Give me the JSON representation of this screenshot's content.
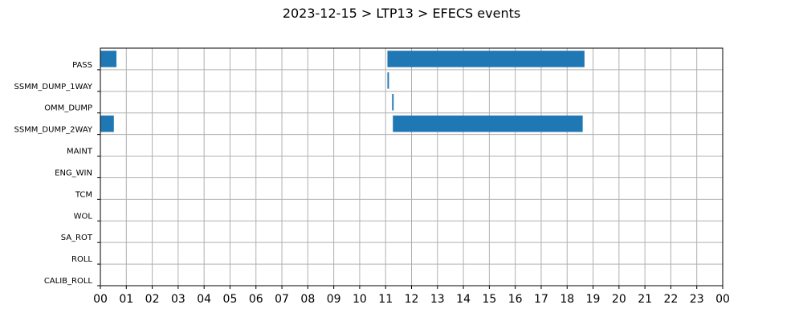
{
  "chart_data": {
    "type": "bar",
    "orientation": "horizontal-timeline",
    "title": "2023-12-15 > LTP13 > EFECS events",
    "xlabel": "",
    "ylabel": "",
    "grid": true,
    "bar_color": "#1f77b4",
    "xlim": [
      0,
      24
    ],
    "x_tick_labels": [
      "00",
      "01",
      "02",
      "03",
      "04",
      "05",
      "06",
      "07",
      "08",
      "09",
      "10",
      "11",
      "12",
      "13",
      "14",
      "15",
      "16",
      "17",
      "18",
      "19",
      "20",
      "21",
      "22",
      "23",
      "00"
    ],
    "categories": [
      "PASS",
      "SSMM_DUMP_1WAY",
      "OMM_DUMP",
      "SSMM_DUMP_2WAY",
      "MAINT",
      "ENG_WIN",
      "TCM",
      "WOL",
      "SA_ROT",
      "ROLL",
      "CALIB_ROLL"
    ],
    "events": [
      {
        "category": "PASS",
        "start": 0.0,
        "end": 0.62
      },
      {
        "category": "PASS",
        "start": 11.07,
        "end": 18.67
      },
      {
        "category": "SSMM_DUMP_1WAY",
        "start": 11.07,
        "end": 11.13
      },
      {
        "category": "OMM_DUMP",
        "start": 11.25,
        "end": 11.31
      },
      {
        "category": "SSMM_DUMP_2WAY",
        "start": 0.0,
        "end": 0.52
      },
      {
        "category": "SSMM_DUMP_2WAY",
        "start": 11.28,
        "end": 18.6
      }
    ]
  }
}
